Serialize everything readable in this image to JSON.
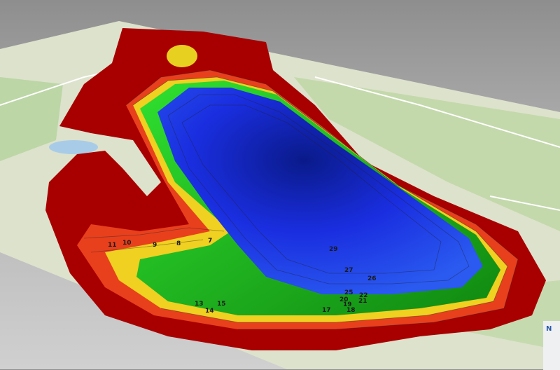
{
  "map": {
    "view": "3D bathymetric depth map over topographic basemap",
    "depth_color_ramp": [
      "#b00000",
      "#e8301a",
      "#f5a020",
      "#f0e020",
      "#20c020",
      "#0a7a0a",
      "#1a3af0",
      "#0a1a90"
    ],
    "basemap_colors": {
      "land": "#dfe3cf",
      "forest": "#bcd6a6",
      "water": "#a8cce8",
      "road": "#ffffff"
    },
    "contour_labels": [
      "7",
      "8",
      "9",
      "10",
      "11",
      "13",
      "14",
      "15",
      "17",
      "18",
      "19",
      "20",
      "21",
      "22",
      "25",
      "26",
      "27",
      "29"
    ]
  },
  "logo": {
    "text": "N"
  }
}
